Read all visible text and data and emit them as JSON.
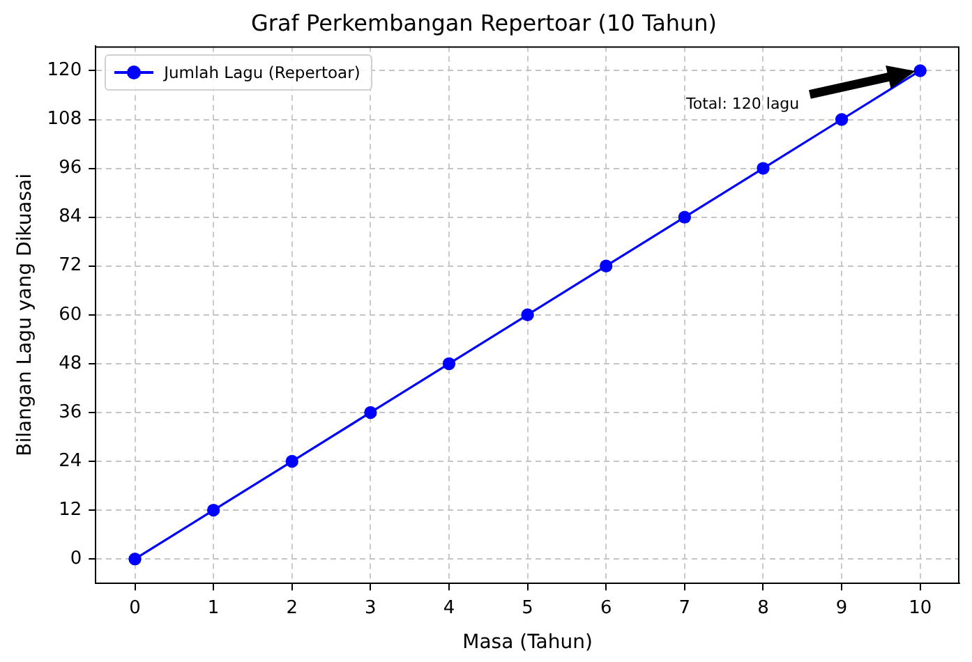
{
  "chart_data": {
    "type": "line",
    "title": "Graf Perkembangan Repertoar (10 Tahun)",
    "xlabel": "Masa (Tahun)",
    "ylabel": "Bilangan Lagu yang Dikuasai",
    "x": [
      0,
      1,
      2,
      3,
      4,
      5,
      6,
      7,
      8,
      9,
      10
    ],
    "series": [
      {
        "name": "Jumlah Lagu (Repertoar)",
        "color": "#0000ff",
        "values": [
          0,
          12,
          24,
          36,
          48,
          60,
          72,
          84,
          96,
          108,
          120
        ]
      }
    ],
    "xlim": [
      -0.5,
      10.5
    ],
    "xticks": [
      0,
      1,
      2,
      3,
      4,
      5,
      6,
      7,
      8,
      9,
      10
    ],
    "ylim": [
      -6,
      126
    ],
    "yticks": [
      0,
      12,
      24,
      36,
      48,
      60,
      72,
      84,
      96,
      108,
      120
    ],
    "annotations": [
      "Total: 120 lagu"
    ],
    "grid": true,
    "legend": "top left",
    "marker": "circle",
    "line_style": "solid"
  }
}
